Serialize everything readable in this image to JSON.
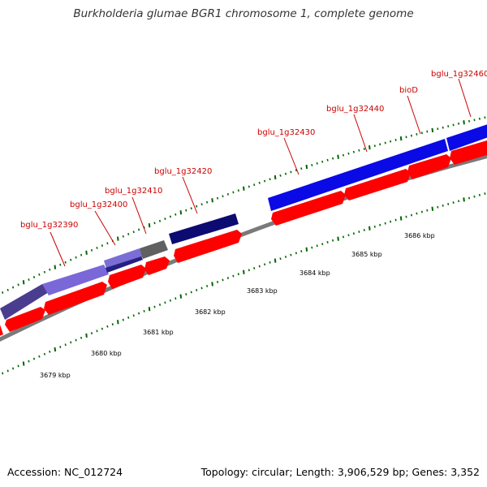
{
  "title": "Burkholderia glumae BGR1 chromosome 1, complete genome",
  "footer": {
    "accession": "Accession: NC_012724",
    "stats": "Topology: circular; Length: 3,906,529 bp; Genes: 3,352"
  },
  "colors": {
    "cds": "#ff0000",
    "backbone": "#808080",
    "tick": "#006400",
    "label": "#cc0000"
  },
  "genes": [
    {
      "name": "bglu_1g32390"
    },
    {
      "name": "bglu_1g32400"
    },
    {
      "name": "bglu_1g32410"
    },
    {
      "name": "bglu_1g32420"
    },
    {
      "name": "bglu_1g32430"
    },
    {
      "name": "bglu_1g32440"
    },
    {
      "name": "bioD"
    },
    {
      "name": "bglu_1g32460"
    }
  ],
  "kbp_labels": [
    "3679 kbp",
    "3680 kbp",
    "3681 kbp",
    "3682 kbp",
    "3683 kbp",
    "3684 kbp",
    "3685 kbp",
    "3686 kbp"
  ]
}
